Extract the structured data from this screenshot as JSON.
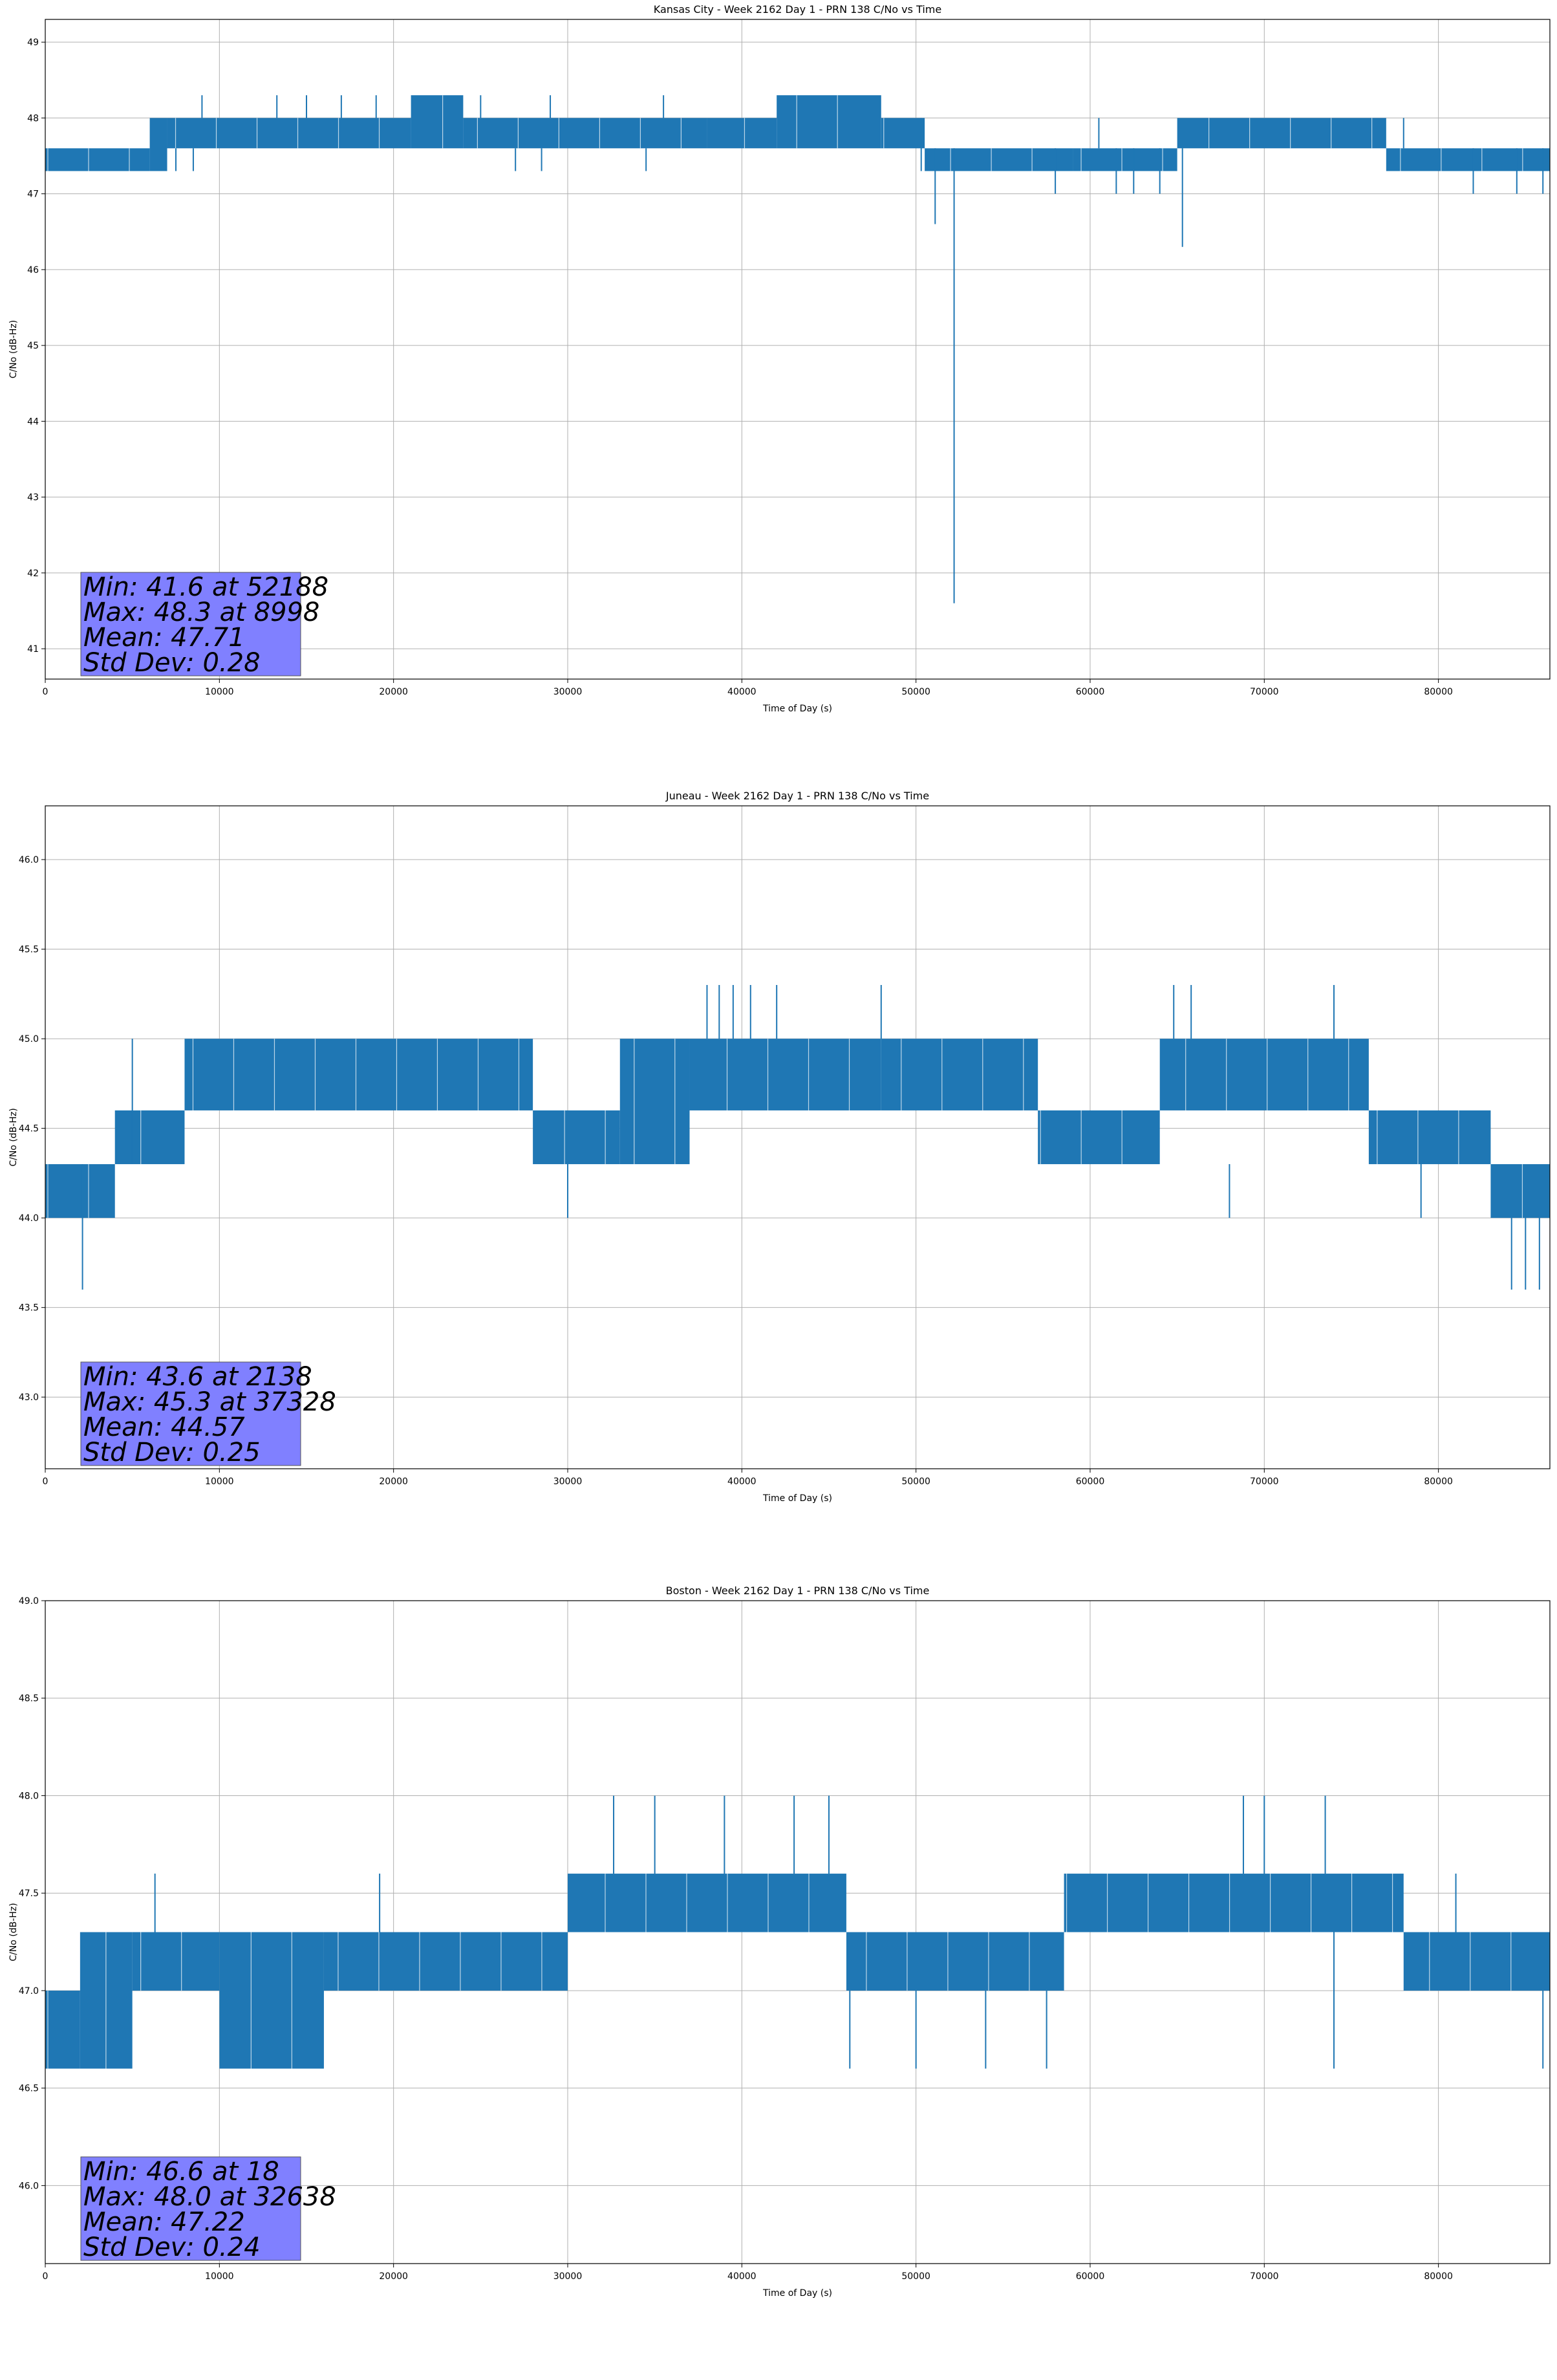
{
  "chart_data": [
    {
      "type": "line",
      "title": "Kansas City - Week 2162 Day 1 - PRN 138 C/No vs Time",
      "xlabel": "Time of Day (s)",
      "ylabel": "C/No (dB-Hz)",
      "xlim": [
        0,
        86400
      ],
      "ylim": [
        40.6,
        49.3
      ],
      "xticks": [
        "0",
        "10000",
        "20000",
        "30000",
        "40000",
        "50000",
        "60000",
        "70000",
        "80000"
      ],
      "yticks": [
        "41",
        "42",
        "43",
        "44",
        "45",
        "46",
        "47",
        "48",
        "49"
      ],
      "grid": true,
      "color": "#1f77b4",
      "series": [
        {
          "segments": [
            {
              "x": [
                0,
                6000
              ],
              "y": [
                47.3,
                47.6
              ]
            },
            {
              "x": [
                6000,
                7000
              ],
              "y": [
                47.3,
                48.0
              ]
            },
            {
              "x": [
                7000,
                21000
              ],
              "y": [
                47.6,
                48.0
              ]
            },
            {
              "x": [
                21000,
                24000
              ],
              "y": [
                47.6,
                48.3
              ]
            },
            {
              "x": [
                24000,
                38000
              ],
              "y": [
                47.6,
                48.0
              ]
            },
            {
              "x": [
                38000,
                42000
              ],
              "y": [
                47.6,
                48.0
              ]
            },
            {
              "x": [
                42000,
                48000
              ],
              "y": [
                47.6,
                48.3
              ]
            },
            {
              "x": [
                48000,
                50500
              ],
              "y": [
                47.6,
                48.0
              ]
            },
            {
              "x": [
                50500,
                59000
              ],
              "y": [
                47.3,
                47.6
              ]
            },
            {
              "x": [
                59000,
                65000
              ],
              "y": [
                47.3,
                47.6
              ]
            },
            {
              "x": [
                65000,
                77000
              ],
              "y": [
                47.6,
                48.0
              ]
            },
            {
              "x": [
                77000,
                86400
              ],
              "y": [
                47.3,
                47.6
              ]
            }
          ],
          "spikes": [
            {
              "x": 9000,
              "y": [
                48.0,
                48.3
              ]
            },
            {
              "x": 13300,
              "y": [
                48.0,
                48.3
              ]
            },
            {
              "x": 15000,
              "y": [
                48.0,
                48.3
              ]
            },
            {
              "x": 17000,
              "y": [
                48.0,
                48.3
              ]
            },
            {
              "x": 19000,
              "y": [
                48.0,
                48.3
              ]
            },
            {
              "x": 25000,
              "y": [
                48.0,
                48.3
              ]
            },
            {
              "x": 29000,
              "y": [
                48.0,
                48.3
              ]
            },
            {
              "x": 35500,
              "y": [
                48.0,
                48.3
              ]
            },
            {
              "x": 7500,
              "y": [
                47.3,
                47.6
              ]
            },
            {
              "x": 8500,
              "y": [
                47.3,
                47.6
              ]
            },
            {
              "x": 27000,
              "y": [
                47.3,
                47.6
              ]
            },
            {
              "x": 28500,
              "y": [
                47.3,
                47.6
              ]
            },
            {
              "x": 34500,
              "y": [
                47.3,
                47.6
              ]
            },
            {
              "x": 50300,
              "y": [
                47.3,
                48.0
              ]
            },
            {
              "x": 51100,
              "y": [
                46.6,
                47.6
              ]
            },
            {
              "x": 52188,
              "y": [
                41.6,
                47.6
              ]
            },
            {
              "x": 58000,
              "y": [
                47.0,
                47.6
              ]
            },
            {
              "x": 60500,
              "y": [
                47.6,
                48.0
              ]
            },
            {
              "x": 61500,
              "y": [
                47.0,
                47.6
              ]
            },
            {
              "x": 62500,
              "y": [
                47.0,
                47.6
              ]
            },
            {
              "x": 64000,
              "y": [
                47.0,
                47.6
              ]
            },
            {
              "x": 65300,
              "y": [
                46.3,
                47.6
              ]
            },
            {
              "x": 78000,
              "y": [
                47.6,
                48.0
              ]
            },
            {
              "x": 82000,
              "y": [
                47.0,
                47.6
              ]
            },
            {
              "x": 84500,
              "y": [
                47.0,
                47.6
              ]
            },
            {
              "x": 86000,
              "y": [
                47.0,
                47.6
              ]
            }
          ]
        }
      ],
      "stats": {
        "line1": "Min: 41.6 at 52188",
        "line2": "Max: 48.3 at 8998",
        "line3": "Mean: 47.71",
        "line4": "Std Dev: 0.28"
      }
    },
    {
      "type": "line",
      "title": "Juneau - Week 2162 Day 1 - PRN 138 C/No vs Time",
      "xlabel": "Time of Day (s)",
      "ylabel": "C/No (dB-Hz)",
      "xlim": [
        0,
        86400
      ],
      "ylim": [
        42.6,
        46.3
      ],
      "xticks": [
        "0",
        "10000",
        "20000",
        "30000",
        "40000",
        "50000",
        "60000",
        "70000",
        "80000"
      ],
      "yticks": [
        "43.0",
        "43.5",
        "44.0",
        "44.5",
        "45.0",
        "45.5",
        "46.0"
      ],
      "grid": true,
      "color": "#1f77b4",
      "series": [
        {
          "segments": [
            {
              "x": [
                0,
                4000
              ],
              "y": [
                44.0,
                44.3
              ]
            },
            {
              "x": [
                4000,
                8000
              ],
              "y": [
                44.3,
                44.6
              ]
            },
            {
              "x": [
                8000,
                28000
              ],
              "y": [
                44.6,
                45.0
              ]
            },
            {
              "x": [
                28000,
                33000
              ],
              "y": [
                44.3,
                44.6
              ]
            },
            {
              "x": [
                33000,
                37000
              ],
              "y": [
                44.3,
                45.0
              ]
            },
            {
              "x": [
                37000,
                48000
              ],
              "y": [
                44.6,
                45.0
              ]
            },
            {
              "x": [
                48000,
                57000
              ],
              "y": [
                44.6,
                45.0
              ]
            },
            {
              "x": [
                57000,
                64000
              ],
              "y": [
                44.3,
                44.6
              ]
            },
            {
              "x": [
                64000,
                76000
              ],
              "y": [
                44.6,
                45.0
              ]
            },
            {
              "x": [
                76000,
                83000
              ],
              "y": [
                44.3,
                44.6
              ]
            },
            {
              "x": [
                83000,
                86400
              ],
              "y": [
                44.0,
                44.3
              ]
            }
          ],
          "spikes": [
            {
              "x": 2138,
              "y": [
                43.6,
                44.3
              ]
            },
            {
              "x": 5000,
              "y": [
                44.3,
                45.0
              ]
            },
            {
              "x": 30000,
              "y": [
                44.0,
                44.3
              ]
            },
            {
              "x": 38000,
              "y": [
                45.0,
                45.3
              ]
            },
            {
              "x": 38700,
              "y": [
                45.0,
                45.3
              ]
            },
            {
              "x": 39500,
              "y": [
                45.0,
                45.3
              ]
            },
            {
              "x": 40500,
              "y": [
                45.0,
                45.3
              ]
            },
            {
              "x": 42000,
              "y": [
                45.0,
                45.3
              ]
            },
            {
              "x": 48000,
              "y": [
                45.0,
                45.3
              ]
            },
            {
              "x": 64800,
              "y": [
                45.0,
                45.3
              ]
            },
            {
              "x": 65800,
              "y": [
                45.0,
                45.3
              ]
            },
            {
              "x": 74000,
              "y": [
                45.0,
                45.3
              ]
            },
            {
              "x": 68000,
              "y": [
                44.0,
                44.3
              ]
            },
            {
              "x": 79000,
              "y": [
                44.0,
                44.3
              ]
            },
            {
              "x": 84200,
              "y": [
                43.6,
                44.0
              ]
            },
            {
              "x": 85000,
              "y": [
                43.6,
                44.0
              ]
            },
            {
              "x": 85800,
              "y": [
                43.6,
                44.0
              ]
            }
          ]
        }
      ],
      "stats": {
        "line1": "Min: 43.6 at 2138",
        "line2": "Max: 45.3 at 37328",
        "line3": "Mean: 44.57",
        "line4": "Std Dev: 0.25"
      }
    },
    {
      "type": "line",
      "title": "Boston - Week 2162 Day 1 - PRN 138 C/No vs Time",
      "xlabel": "Time of Day (s)",
      "ylabel": "C/No (dB-Hz)",
      "xlim": [
        0,
        86400
      ],
      "ylim": [
        45.6,
        49.0
      ],
      "xticks": [
        "0",
        "10000",
        "20000",
        "30000",
        "40000",
        "50000",
        "60000",
        "70000",
        "80000"
      ],
      "yticks": [
        "46.0",
        "46.5",
        "47.0",
        "47.5",
        "48.0",
        "48.5",
        "49.0"
      ],
      "grid": true,
      "color": "#1f77b4",
      "series": [
        {
          "segments": [
            {
              "x": [
                0,
                2000
              ],
              "y": [
                46.6,
                47.0
              ]
            },
            {
              "x": [
                2000,
                5000
              ],
              "y": [
                46.6,
                47.3
              ]
            },
            {
              "x": [
                5000,
                10000
              ],
              "y": [
                47.0,
                47.3
              ]
            },
            {
              "x": [
                10000,
                16000
              ],
              "y": [
                46.6,
                47.3
              ]
            },
            {
              "x": [
                16000,
                30000
              ],
              "y": [
                47.0,
                47.3
              ]
            },
            {
              "x": [
                30000,
                46000
              ],
              "y": [
                47.3,
                47.6
              ]
            },
            {
              "x": [
                46000,
                58500
              ],
              "y": [
                47.0,
                47.3
              ]
            },
            {
              "x": [
                58500,
                78000
              ],
              "y": [
                47.3,
                47.6
              ]
            },
            {
              "x": [
                78000,
                86400
              ],
              "y": [
                47.0,
                47.3
              ]
            }
          ],
          "spikes": [
            {
              "x": 18,
              "y": [
                46.6,
                47.0
              ]
            },
            {
              "x": 6300,
              "y": [
                47.3,
                47.6
              ]
            },
            {
              "x": 19200,
              "y": [
                47.3,
                47.6
              ]
            },
            {
              "x": 32638,
              "y": [
                47.6,
                48.0
              ]
            },
            {
              "x": 35000,
              "y": [
                47.6,
                48.0
              ]
            },
            {
              "x": 39000,
              "y": [
                47.6,
                48.0
              ]
            },
            {
              "x": 43000,
              "y": [
                47.6,
                48.0
              ]
            },
            {
              "x": 45000,
              "y": [
                47.6,
                48.0
              ]
            },
            {
              "x": 46200,
              "y": [
                46.6,
                47.0
              ]
            },
            {
              "x": 50000,
              "y": [
                46.6,
                47.0
              ]
            },
            {
              "x": 54000,
              "y": [
                46.6,
                47.0
              ]
            },
            {
              "x": 57500,
              "y": [
                46.6,
                47.0
              ]
            },
            {
              "x": 68800,
              "y": [
                47.6,
                48.0
              ]
            },
            {
              "x": 70000,
              "y": [
                47.6,
                48.0
              ]
            },
            {
              "x": 73500,
              "y": [
                47.6,
                48.0
              ]
            },
            {
              "x": 74000,
              "y": [
                46.6,
                47.3
              ]
            },
            {
              "x": 81000,
              "y": [
                47.3,
                47.6
              ]
            },
            {
              "x": 86000,
              "y": [
                46.6,
                47.0
              ]
            }
          ]
        }
      ],
      "stats": {
        "line1": "Min: 46.6 at 18",
        "line2": "Max: 48.0 at 32638",
        "line3": "Mean: 47.22",
        "line4": "Std Dev: 0.24"
      }
    }
  ]
}
